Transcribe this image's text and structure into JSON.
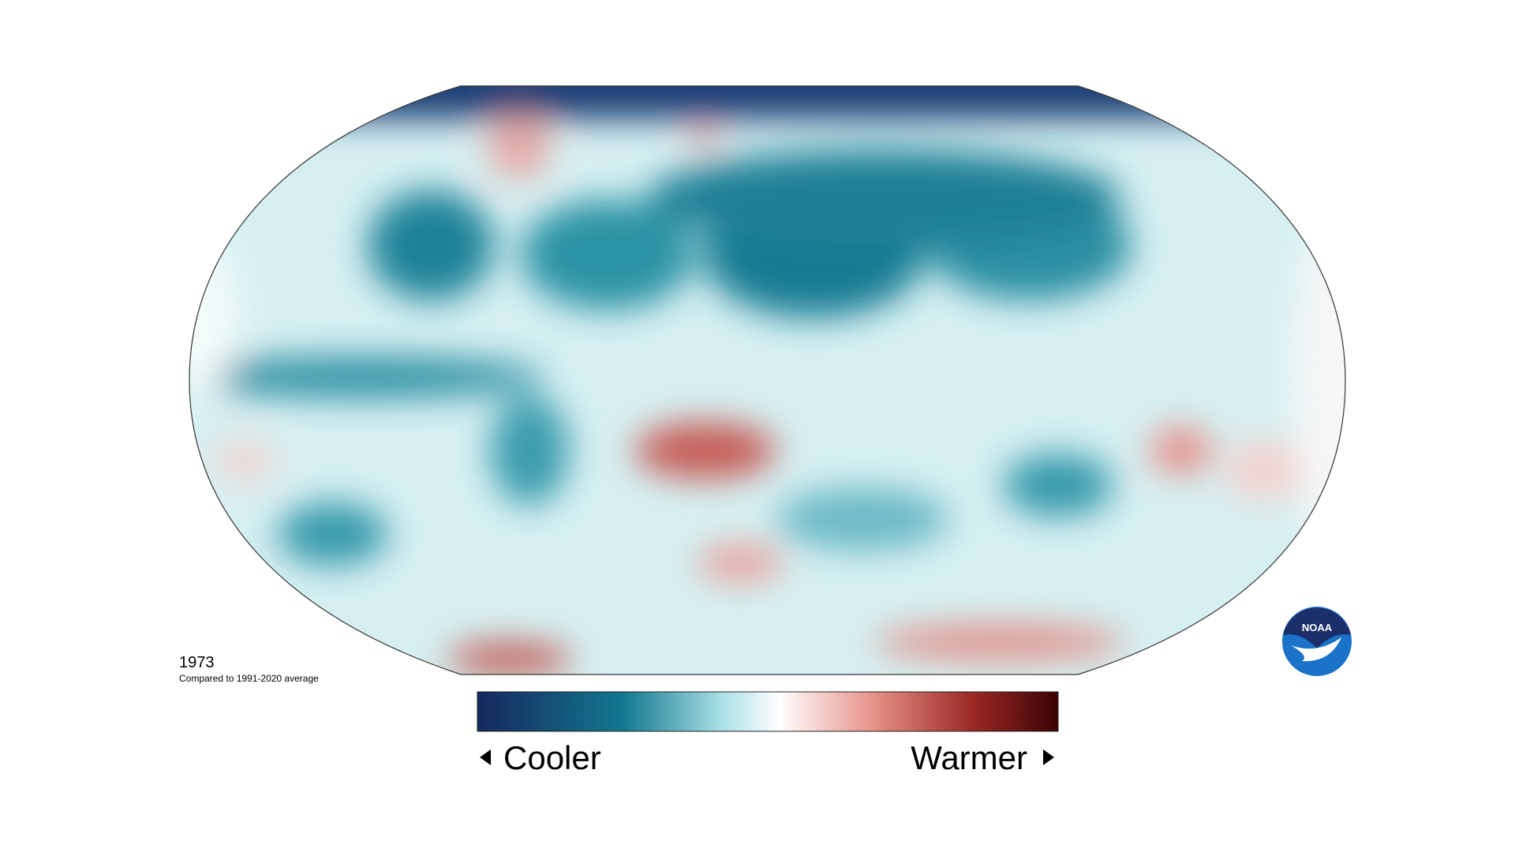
{
  "map": {
    "year": "1973",
    "subtitle": "Compared to 1991-2020 average"
  },
  "legend": {
    "low_label": "Cooler",
    "high_label": "Warmer"
  },
  "logo": {
    "text": "NOAA"
  }
}
